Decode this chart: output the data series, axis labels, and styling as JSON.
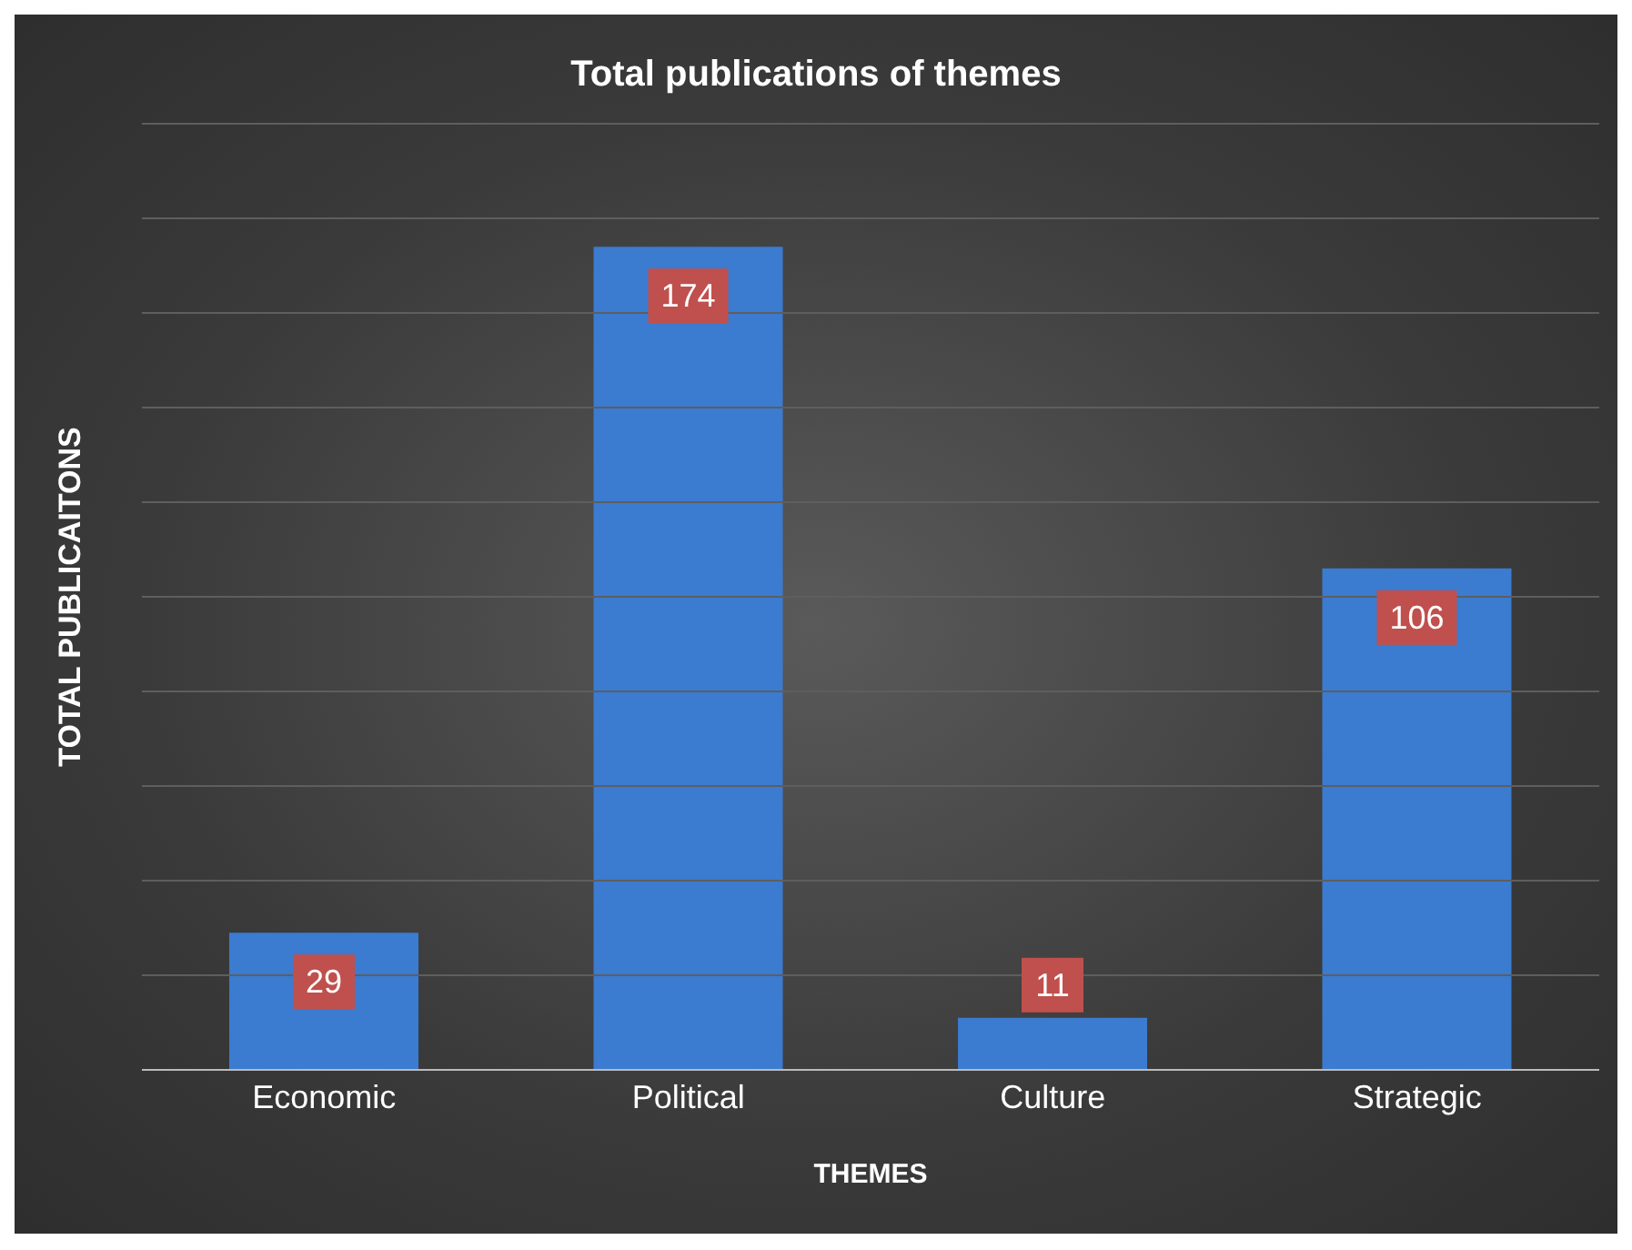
{
  "chart_data": {
    "type": "bar",
    "title": "Total publications of themes",
    "xlabel": "THEMES",
    "ylabel": "TOTAL PUBLICAITONS",
    "categories": [
      "Economic",
      "Political",
      "Culture",
      "Strategic"
    ],
    "values": [
      29,
      174,
      11,
      106
    ],
    "color": "#3b7bd0",
    "ylim": [
      0,
      200
    ],
    "yticks": [
      {
        "value": 0,
        "label": null
      },
      {
        "value": 20,
        "label": null
      },
      {
        "value": 40,
        "label": null
      },
      {
        "value": 60,
        "label": null
      },
      {
        "value": 80,
        "label": null
      },
      {
        "value": 100,
        "label": null
      },
      {
        "value": 120,
        "label": null
      },
      {
        "value": 140,
        "label": null
      },
      {
        "value": 160,
        "label": null
      },
      {
        "value": 180,
        "label": null
      },
      {
        "value": 200,
        "label": null
      }
    ],
    "grid": "y",
    "tick_labels": "x",
    "data_labels": true
  }
}
